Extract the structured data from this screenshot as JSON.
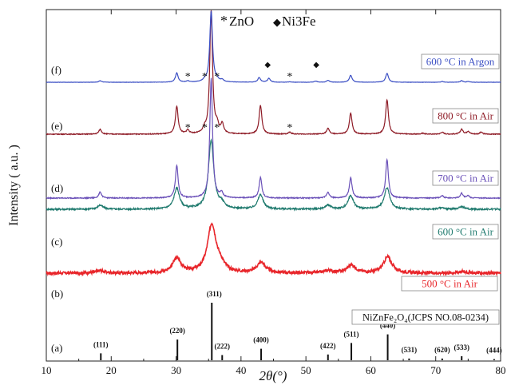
{
  "chart_data": {
    "type": "line",
    "title": "",
    "xlabel": "2θ(°)",
    "ylabel": "Intensity ( a.u. )",
    "xlim": [
      10,
      80
    ],
    "xticks": [
      10,
      20,
      30,
      40,
      50,
      60,
      70,
      80
    ],
    "grid": false,
    "legend": [
      {
        "symbol": "*",
        "label": "ZnO"
      },
      {
        "symbol": "◆",
        "label": "Ni3Fe"
      }
    ],
    "reference": {
      "trace_label": "(a)",
      "label": "NiZnFe₂O₄(JCPS NO.08-0234)",
      "x": [
        18.4,
        30.2,
        35.5,
        37.1,
        43.1,
        53.4,
        57.0,
        62.6,
        65.9,
        71.0,
        74.0,
        79.0
      ],
      "values": [
        0.12,
        0.36,
        1.0,
        0.09,
        0.2,
        0.1,
        0.3,
        0.45,
        0.03,
        0.03,
        0.07,
        0.02
      ],
      "hkl": [
        "(111)",
        "(220)",
        "(311)",
        "(222)",
        "(400)",
        "(422)",
        "(511)",
        "(440)",
        "(531)",
        "(620)",
        "(533)",
        "(444)"
      ]
    },
    "series": [
      {
        "name": "500 °C in Air",
        "trace_label": "(b)",
        "color": "#e8262b",
        "peak_width": 0.8,
        "noise": 0.018,
        "peaks_x": [
          18.3,
          30.1,
          35.5,
          36.8,
          43.1,
          53.5,
          57.0,
          62.6,
          74.0
        ],
        "peaks_h": [
          0.03,
          0.18,
          0.6,
          0.08,
          0.13,
          0.03,
          0.1,
          0.2,
          0.02
        ]
      },
      {
        "name": "600 °C in Air",
        "trace_label": "(c)",
        "color": "#1f7a6e",
        "peak_width": 0.5,
        "noise": 0.01,
        "peaks_x": [
          18.3,
          30.1,
          35.4,
          37.0,
          43.0,
          53.4,
          56.9,
          62.5,
          70.9,
          74.0
        ],
        "peaks_h": [
          0.05,
          0.26,
          0.85,
          0.06,
          0.18,
          0.05,
          0.17,
          0.27,
          0.02,
          0.03
        ]
      },
      {
        "name": "700 °C in Air",
        "trace_label": "(d)",
        "color": "#6a50b8",
        "peak_width": 0.25,
        "noise": 0.004,
        "peaks_x": [
          18.3,
          30.1,
          35.4,
          37.0,
          43.0,
          53.4,
          56.9,
          62.5,
          71.0,
          74.0,
          75.0
        ],
        "peaks_h": [
          0.05,
          0.27,
          1.0,
          0.04,
          0.17,
          0.05,
          0.17,
          0.32,
          0.02,
          0.04,
          0.02
        ]
      },
      {
        "name": "800 °C in Air",
        "trace_label": "(e)",
        "color": "#8e1b26",
        "peak_width": 0.25,
        "noise": 0.004,
        "peaks_x": [
          18.3,
          30.1,
          31.8,
          34.4,
          35.4,
          36.3,
          37.1,
          43.0,
          47.5,
          53.4,
          56.9,
          62.5,
          68.0,
          71.0,
          74.0,
          75.0,
          77.0
        ],
        "peaks_h": [
          0.05,
          0.29,
          0.04,
          0.04,
          1.3,
          0.08,
          0.1,
          0.3,
          0.02,
          0.06,
          0.22,
          0.36,
          0.01,
          0.02,
          0.05,
          0.03,
          0.02
        ]
      },
      {
        "name": "600 °C in Argon",
        "trace_label": "(f)",
        "color": "#3b4fc4",
        "peak_width": 0.25,
        "noise": 0.004,
        "peaks_x": [
          18.3,
          30.1,
          31.8,
          34.4,
          35.4,
          36.3,
          37.1,
          42.8,
          44.3,
          47.5,
          51.5,
          53.4,
          56.9,
          62.5,
          71.0,
          74.0,
          75.0
        ],
        "peaks_h": [
          0.04,
          0.24,
          0.03,
          0.04,
          1.85,
          0.05,
          0.05,
          0.12,
          0.1,
          0.01,
          0.03,
          0.05,
          0.18,
          0.23,
          0.02,
          0.04,
          0.02
        ]
      }
    ],
    "markers": [
      {
        "series": 4,
        "symbol": "*",
        "x": [
          31.8,
          34.4,
          36.3,
          47.5
        ]
      },
      {
        "series": 4,
        "symbol": "◆",
        "x": [
          44.1,
          51.6
        ]
      },
      {
        "series": 3,
        "symbol": "*",
        "x": [
          31.8,
          34.4,
          36.3,
          47.5
        ]
      }
    ]
  }
}
